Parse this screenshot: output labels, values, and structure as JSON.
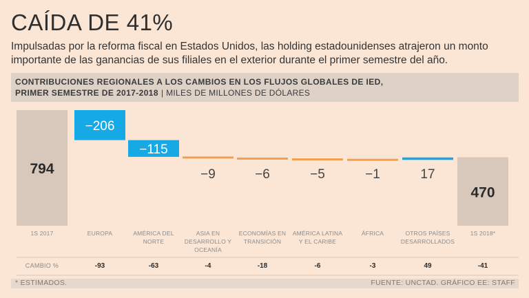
{
  "title": "CAÍDA DE 41%",
  "subtitle": "Impulsadas por la reforma fiscal en Estados Unidos, las holding estadounidenses atrajeron un monto importante de las ganancias de sus filiales en el exterior durante el primer semestre del año.",
  "chart_header": {
    "line1": "CONTRIBUCIONES REGIONALES A LOS CAMBIOS EN LOS FLUJOS GLOBALES DE IED,",
    "line2": "PRIMER SEMESTRE DE 2017-2018",
    "separator": "|",
    "units": "MILES DE MILLONES DE DÓLARES"
  },
  "change_label": "CAMBIO %",
  "note": "* ESTIMADOS.",
  "source": "FUENTE: UNCTAD. GRÁFICO EE: STAFF",
  "colors": {
    "total": "#d8c8bb",
    "negative": "#15a9e6",
    "small_negative": "#f4a04a",
    "positive": "#15a9e6"
  },
  "chart_data": {
    "type": "bar",
    "subtype": "waterfall",
    "title": "CONTRIBUCIONES REGIONALES A LOS CAMBIOS EN LOS FLUJOS GLOBALES DE IED, PRIMER SEMESTRE DE 2017-2018",
    "ylabel": "MILES DE MILLONES DE DÓLARES",
    "categories": [
      "1S 2017",
      "EUROPA",
      "AMÉRICA DEL NORTE",
      "ASIA EN DESARROLLO Y OCEANÍA",
      "ECONOMÍAS EN TRANSICIÓN",
      "AMÉRICA LATINA Y EL CARIBE",
      "ÁFRICA",
      "OTROS PAÍSES DESARROLLADOS",
      "1S 2018*"
    ],
    "category_lines": [
      [
        "1S 2017"
      ],
      [
        "EUROPA"
      ],
      [
        "AMÉRICA DEL",
        "NORTE"
      ],
      [
        "ASIA EN",
        "DESARROLLO Y",
        "OCEANÍA"
      ],
      [
        "ECONOMÍAS EN",
        "TRANSICIÓN"
      ],
      [
        "AMÉRICA LATINA",
        "Y EL CARIBE"
      ],
      [
        "ÁFRICA"
      ],
      [
        "OTROS PAÍSES",
        "DESARROLLADOS"
      ],
      [
        "1S 2018*"
      ]
    ],
    "kinds": [
      "total",
      "delta",
      "delta",
      "delta",
      "delta",
      "delta",
      "delta",
      "delta",
      "total"
    ],
    "values": [
      794,
      -206,
      -115,
      -9,
      -6,
      -5,
      -1,
      17,
      470
    ],
    "value_labels": [
      "794",
      "−206",
      "−115",
      "−9",
      "−6",
      "−5",
      "−1",
      "17",
      "470"
    ],
    "change_pct": [
      "",
      "-93",
      "-63",
      "-4",
      "-18",
      "-6",
      "-3",
      "49",
      "-41"
    ],
    "ylim": [
      0,
      794
    ]
  }
}
